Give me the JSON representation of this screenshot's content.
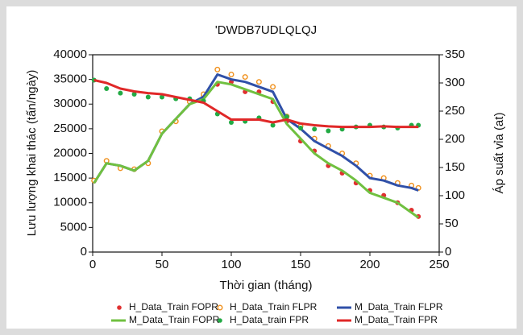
{
  "chart_data": {
    "type": "line",
    "title": "'DWDB7UDLQLQJ",
    "x_label": "Thời gian (tháng)",
    "y_label": "Lưu lượng khai thác (tấn/ngày)",
    "y2_label": "Áp suất vỉa (at)",
    "x": [
      1,
      10,
      20,
      30,
      40,
      50,
      60,
      70,
      80,
      90,
      100,
      110,
      120,
      130,
      140,
      150,
      160,
      170,
      180,
      190,
      200,
      210,
      220,
      230,
      235
    ],
    "xlim": [
      0,
      250
    ],
    "xticks": [
      0,
      50,
      100,
      150,
      200,
      250
    ],
    "ylim": [
      0,
      40000
    ],
    "yticks": [
      0,
      5000,
      10000,
      15000,
      20000,
      25000,
      30000,
      35000,
      40000
    ],
    "y2lim": [
      0,
      350
    ],
    "y2ticks": [
      0,
      50,
      100,
      150,
      200,
      250,
      300,
      350
    ],
    "legend": "bottom",
    "series": [
      {
        "name": "H_Data_Train FOPR",
        "color": "#e03030",
        "mode": "markers",
        "marker": "dot",
        "values": [
          14500,
          18500,
          17000,
          16800,
          18000,
          24500,
          26500,
          30500,
          31500,
          34000,
          34500,
          32500,
          32500,
          30500,
          26500,
          22500,
          20500,
          17500,
          16000,
          14000,
          12500,
          11500,
          10000,
          8500,
          7200
        ]
      },
      {
        "name": "H_Data_Train FLPR",
        "color": "#f0901c",
        "mode": "markers",
        "marker": "ring",
        "values": [
          14500,
          18500,
          17000,
          16800,
          18000,
          24500,
          26500,
          30500,
          32000,
          37000,
          36000,
          35500,
          34500,
          33500,
          27500,
          25500,
          23000,
          21500,
          20000,
          18000,
          15500,
          15000,
          14000,
          13500,
          13000
        ]
      },
      {
        "name": "M_Data_Train FLPR",
        "color": "#3050a8",
        "mode": "line",
        "values": [
          14000,
          18000,
          17500,
          16500,
          18500,
          24000,
          27000,
          30000,
          31500,
          36000,
          35000,
          34500,
          33500,
          32500,
          27000,
          25000,
          22500,
          21000,
          19500,
          17500,
          15000,
          14500,
          13500,
          13000,
          12500
        ]
      },
      {
        "name": "M_Data_Train FOPR",
        "color": "#70c040",
        "mode": "line",
        "values": [
          14000,
          18000,
          17500,
          16500,
          18500,
          24000,
          27000,
          30000,
          31000,
          34500,
          34000,
          33000,
          32000,
          31000,
          26000,
          23000,
          20000,
          18000,
          16500,
          14500,
          12000,
          11000,
          10000,
          8000,
          7000
        ]
      },
      {
        "name": "H_Data_train FPR",
        "color": "#22aa44",
        "mode": "markers",
        "marker": "dot",
        "axis": "y2",
        "values": [
          305,
          290,
          282,
          280,
          275,
          275,
          272,
          272,
          268,
          245,
          230,
          232,
          238,
          225,
          240,
          220,
          218,
          215,
          218,
          222,
          225,
          222,
          220,
          225,
          225
        ]
      },
      {
        "name": "M_Data_Train FPR",
        "color": "#e02828",
        "mode": "line",
        "axis": "y2",
        "values": [
          305,
          300,
          290,
          285,
          282,
          280,
          275,
          270,
          265,
          250,
          235,
          235,
          235,
          230,
          235,
          228,
          225,
          223,
          222,
          222,
          222,
          223,
          222,
          222,
          222
        ]
      }
    ]
  }
}
